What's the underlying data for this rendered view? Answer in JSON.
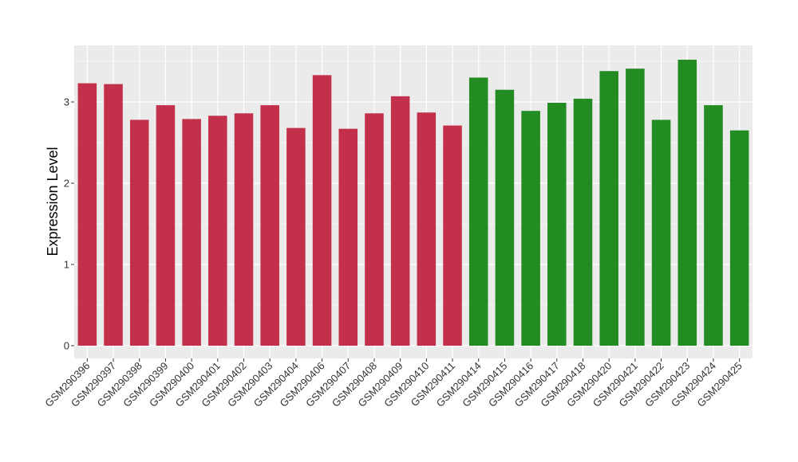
{
  "chart_data": {
    "type": "bar",
    "ylabel": "Expression Level",
    "xlabel": "",
    "ylim": [
      0,
      3.6
    ],
    "yticks": [
      0,
      1,
      2,
      3
    ],
    "grid": true,
    "categories": [
      "GSM290396",
      "GSM290397",
      "GSM290398",
      "GSM290399",
      "GSM290400",
      "GSM290401",
      "GSM290402",
      "GSM290403",
      "GSM290404",
      "GSM290406",
      "GSM290407",
      "GSM290408",
      "GSM290409",
      "GSM290410",
      "GSM290411",
      "GSM290414",
      "GSM290415",
      "GSM290416",
      "GSM290417",
      "GSM290418",
      "GSM290420",
      "GSM290421",
      "GSM290422",
      "GSM290423",
      "GSM290424",
      "GSM290425"
    ],
    "values": [
      3.23,
      3.22,
      2.78,
      2.96,
      2.79,
      2.83,
      2.86,
      2.96,
      2.68,
      3.33,
      2.67,
      2.86,
      3.07,
      2.87,
      2.71,
      3.3,
      3.15,
      2.89,
      2.99,
      3.04,
      3.38,
      3.41,
      2.78,
      3.52,
      2.96,
      2.65
    ],
    "bar_colors": [
      "#c3304b",
      "#c3304b",
      "#c3304b",
      "#c3304b",
      "#c3304b",
      "#c3304b",
      "#c3304b",
      "#c3304b",
      "#c3304b",
      "#c3304b",
      "#c3304b",
      "#c3304b",
      "#c3304b",
      "#c3304b",
      "#c3304b",
      "#228b22",
      "#228b22",
      "#228b22",
      "#228b22",
      "#228b22",
      "#228b22",
      "#228b22",
      "#228b22",
      "#228b22",
      "#228b22",
      "#228b22"
    ],
    "panel_background": "#ebebeb",
    "grid_color": "#ffffff"
  }
}
